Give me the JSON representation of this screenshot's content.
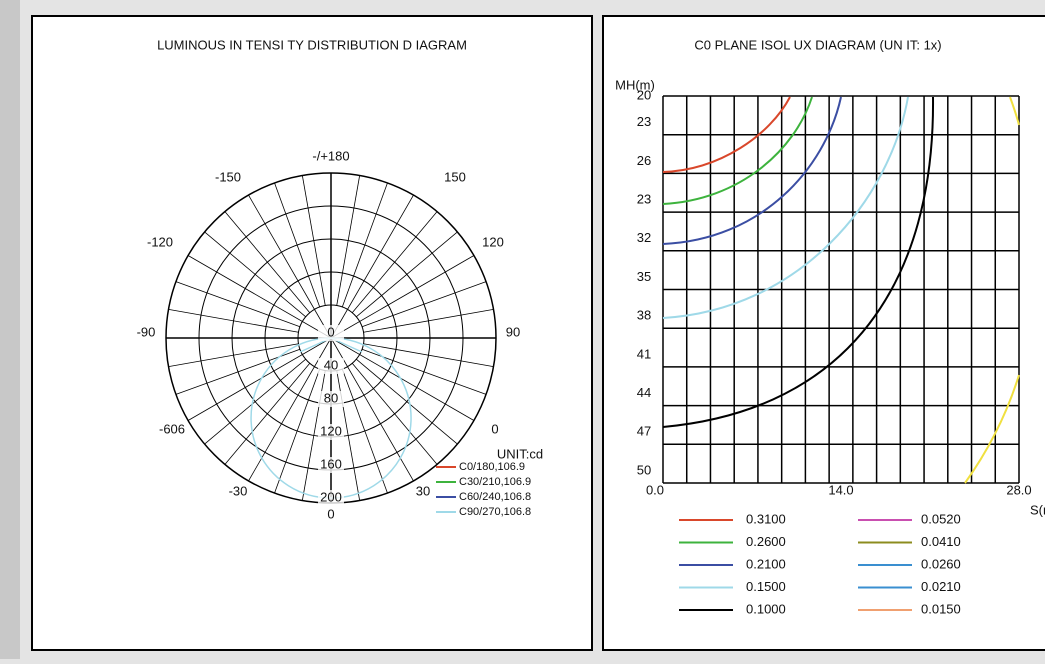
{
  "polar": {
    "title": "LUMINOUS IN TENSI TY DISTRIBUTION D  IAGRAM",
    "angle_labels": [
      "-/+180",
      "150",
      "-150",
      "120",
      "-120",
      "90",
      "-90",
      "0",
      "-606",
      "30",
      "-30",
      "0"
    ],
    "radial_labels": [
      "0",
      "40",
      "80",
      "120",
      "160",
      "200"
    ],
    "unit": "UNIT:cd",
    "legend": [
      {
        "label": "C0/180,106.9",
        "color": "#d9472b"
      },
      {
        "label": "C30/210,106.9",
        "color": "#3db33d"
      },
      {
        "label": "C60/240,106.8",
        "color": "#3b4ea3"
      },
      {
        "label": "C90/270,106.8",
        "color": "#9fd9e8"
      }
    ]
  },
  "isolux": {
    "title": "C0 PLANE ISOL UX DIAGRAM (UN IT: 1x)",
    "y_axis_label": "MH(m)",
    "y_labels": [
      "20",
      "23",
      "26",
      "23",
      "32",
      "35",
      "38",
      "41",
      "44",
      "47",
      "50"
    ],
    "x_labels": [
      "0.0",
      "14.0",
      "28.0"
    ],
    "x_axis_label": "S(m",
    "legend": [
      {
        "label": "0.3100",
        "color": "#d9472b"
      },
      {
        "label": "0.2600",
        "color": "#3db33d"
      },
      {
        "label": "0.2100",
        "color": "#3b4ea3"
      },
      {
        "label": "0.1500",
        "color": "#9fd9e8"
      },
      {
        "label": "0.1000",
        "color": "#000000"
      },
      {
        "label": "0.0520",
        "color": "#c94fb0"
      },
      {
        "label": "0.0410",
        "color": "#8c8c1f"
      },
      {
        "label": "0.0260",
        "color": "#3a8fd0"
      },
      {
        "label": "0.0210",
        "color": "#3a8fd0"
      },
      {
        "label": "0.0150",
        "color": "#f0a070"
      }
    ]
  }
}
